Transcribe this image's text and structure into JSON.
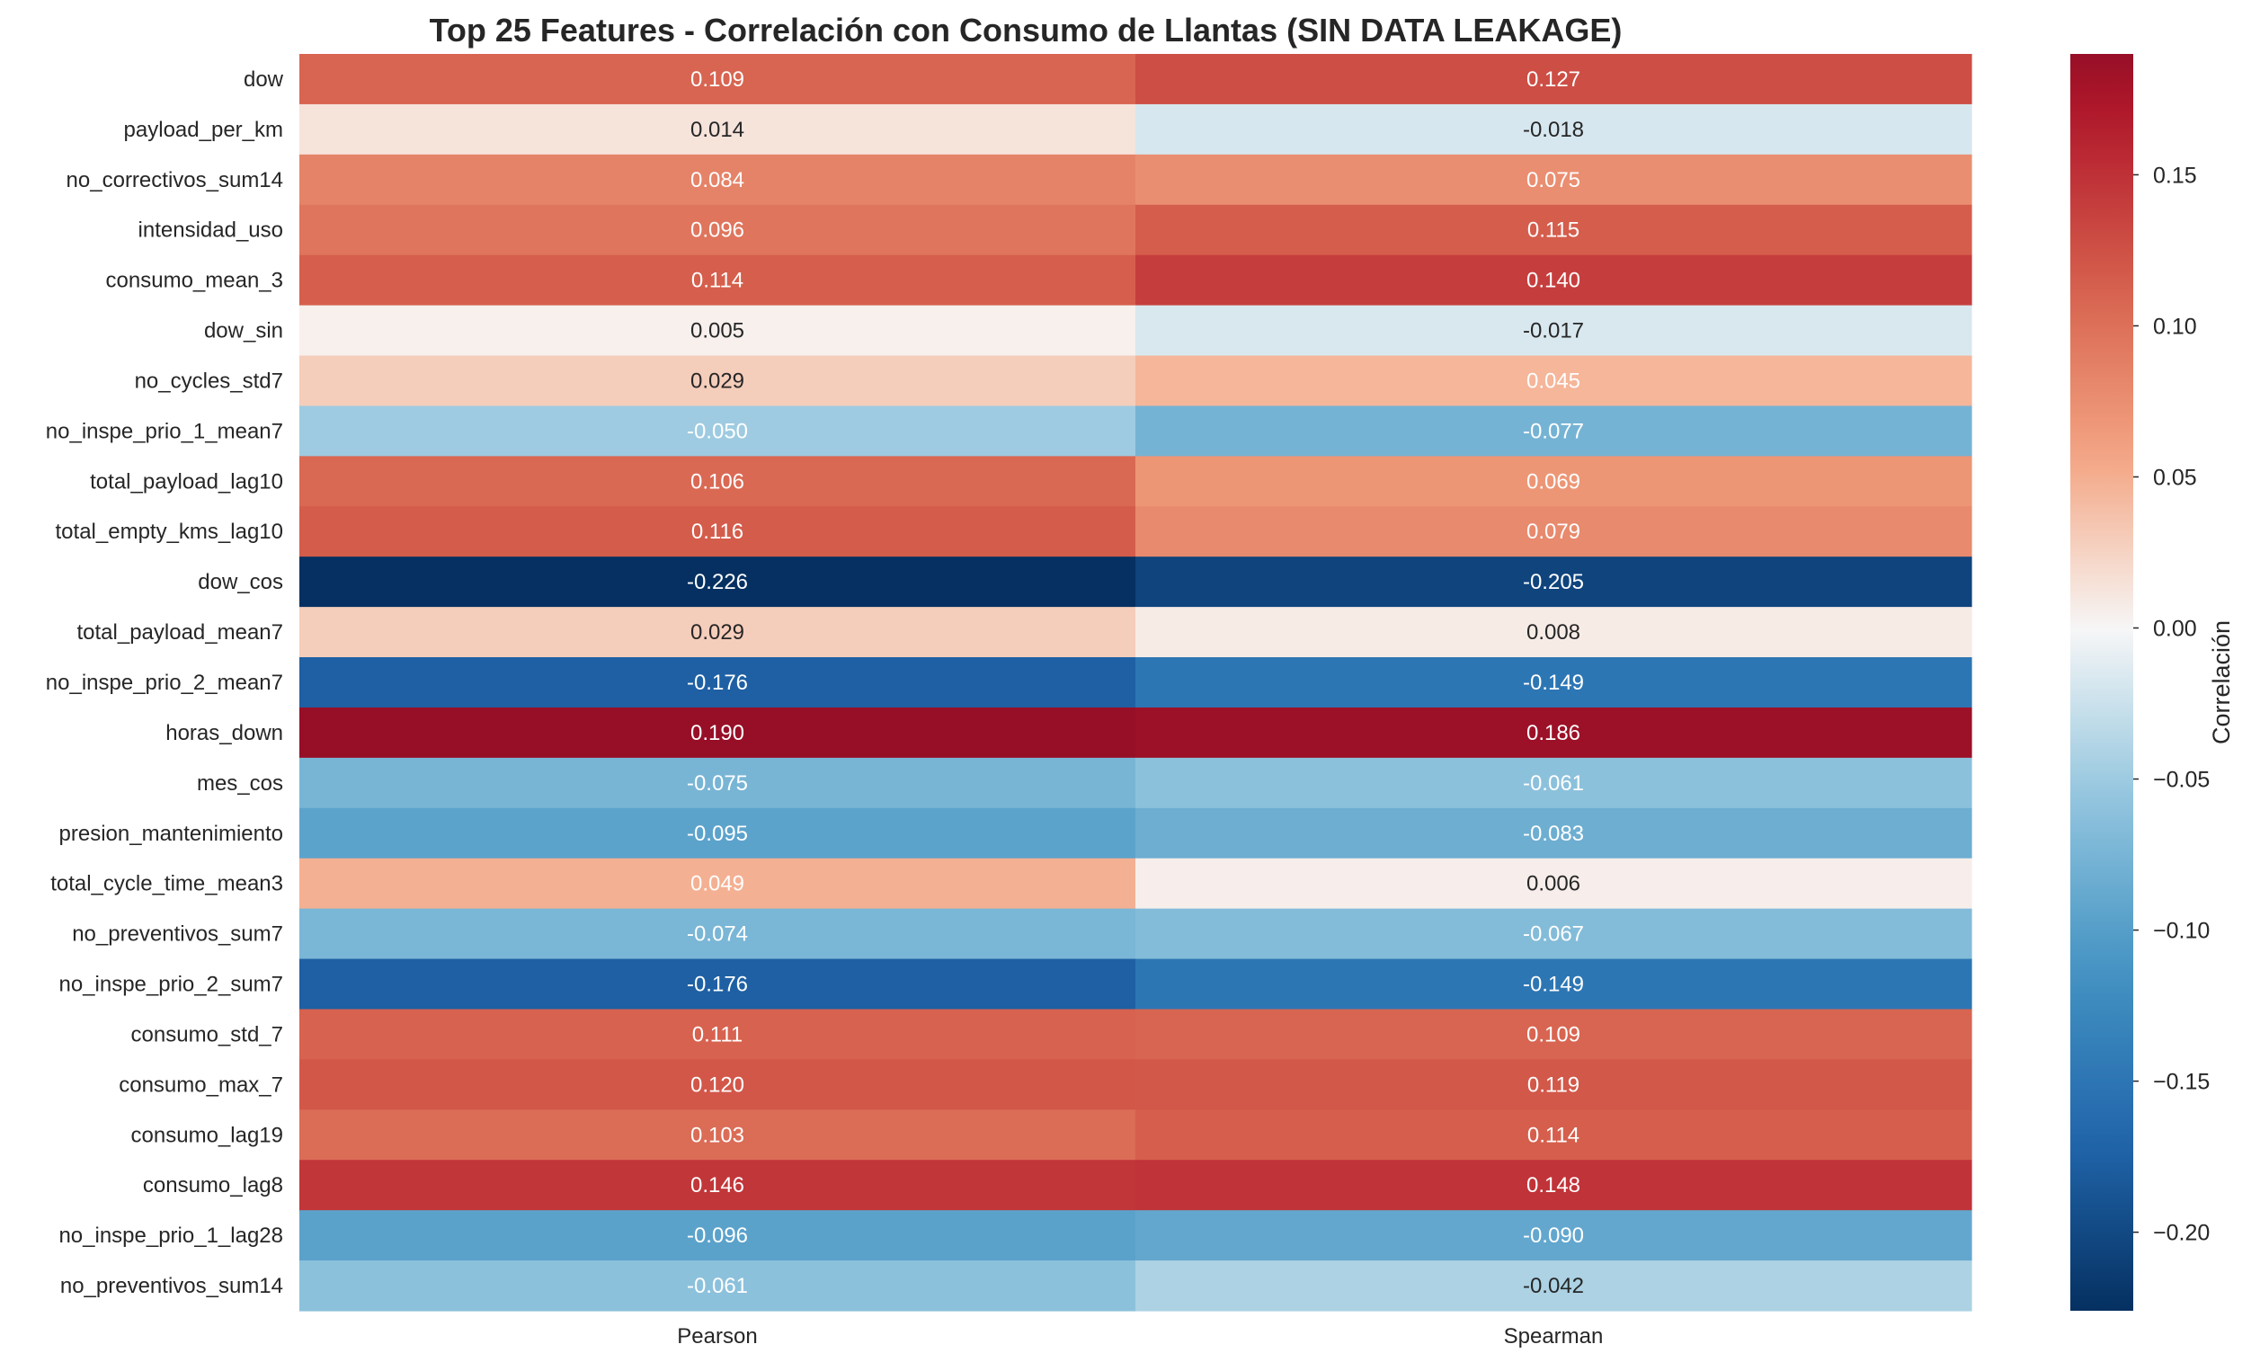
{
  "chart_data": {
    "type": "heatmap",
    "title": "Top 25 Features - Correlación con Consumo de Llantas (SIN DATA LEAKAGE)",
    "columns": [
      "Pearson",
      "Spearman"
    ],
    "rows": [
      "dow",
      "payload_per_km",
      "no_correctivos_sum14",
      "intensidad_uso",
      "consumo_mean_3",
      "dow_sin",
      "no_cycles_std7",
      "no_inspe_prio_1_mean7",
      "total_payload_lag10",
      "total_empty_kms_lag10",
      "dow_cos",
      "total_payload_mean7",
      "no_inspe_prio_2_mean7",
      "horas_down",
      "mes_cos",
      "presion_mantenimiento",
      "total_cycle_time_mean3",
      "no_preventivos_sum7",
      "no_inspe_prio_2_sum7",
      "consumo_std_7",
      "consumo_max_7",
      "consumo_lag19",
      "consumo_lag8",
      "no_inspe_prio_1_lag28",
      "no_preventivos_sum14"
    ],
    "values": [
      [
        0.109,
        0.127
      ],
      [
        0.014,
        -0.018
      ],
      [
        0.084,
        0.075
      ],
      [
        0.096,
        0.115
      ],
      [
        0.114,
        0.14
      ],
      [
        0.005,
        -0.017
      ],
      [
        0.029,
        0.045
      ],
      [
        -0.05,
        -0.077
      ],
      [
        0.106,
        0.069
      ],
      [
        0.116,
        0.079
      ],
      [
        -0.226,
        -0.205
      ],
      [
        0.029,
        0.008
      ],
      [
        -0.176,
        -0.149
      ],
      [
        0.19,
        0.186
      ],
      [
        -0.075,
        -0.061
      ],
      [
        -0.095,
        -0.083
      ],
      [
        0.049,
        0.006
      ],
      [
        -0.074,
        -0.067
      ],
      [
        -0.176,
        -0.149
      ],
      [
        0.111,
        0.109
      ],
      [
        0.12,
        0.119
      ],
      [
        0.103,
        0.114
      ],
      [
        0.146,
        0.148
      ],
      [
        -0.096,
        -0.09
      ],
      [
        -0.061,
        -0.042
      ]
    ],
    "labels": [
      [
        "0.109",
        "0.127"
      ],
      [
        "0.014",
        "-0.018"
      ],
      [
        "0.084",
        "0.075"
      ],
      [
        "0.096",
        "0.115"
      ],
      [
        "0.114",
        "0.140"
      ],
      [
        "0.005",
        "-0.017"
      ],
      [
        "0.029",
        "0.045"
      ],
      [
        "-0.050",
        "-0.077"
      ],
      [
        "0.106",
        "0.069"
      ],
      [
        "0.116",
        "0.079"
      ],
      [
        "-0.226",
        "-0.205"
      ],
      [
        "0.029",
        "0.008"
      ],
      [
        "-0.176",
        "-0.149"
      ],
      [
        "0.190",
        "0.186"
      ],
      [
        "-0.075",
        "-0.061"
      ],
      [
        "-0.095",
        "-0.083"
      ],
      [
        "0.049",
        "0.006"
      ],
      [
        "-0.074",
        "-0.067"
      ],
      [
        "-0.176",
        "-0.149"
      ],
      [
        "0.111",
        "0.109"
      ],
      [
        "0.120",
        "0.119"
      ],
      [
        "0.103",
        "0.114"
      ],
      [
        "0.146",
        "0.148"
      ],
      [
        "-0.096",
        "-0.090"
      ],
      [
        "-0.061",
        "-0.042"
      ]
    ],
    "colormap": "RdBu_r",
    "vmin": -0.226,
    "vmax": 0.19,
    "colorbar": {
      "label": "Correlación",
      "ticks": [
        0.15,
        0.1,
        0.05,
        0.0,
        -0.05,
        -0.1,
        -0.15,
        -0.2
      ],
      "tick_labels": [
        "0.15",
        "0.10",
        "0.05",
        "0.00",
        "−0.05",
        "−0.10",
        "−0.15",
        "−0.20"
      ]
    },
    "legend_position": "right"
  }
}
